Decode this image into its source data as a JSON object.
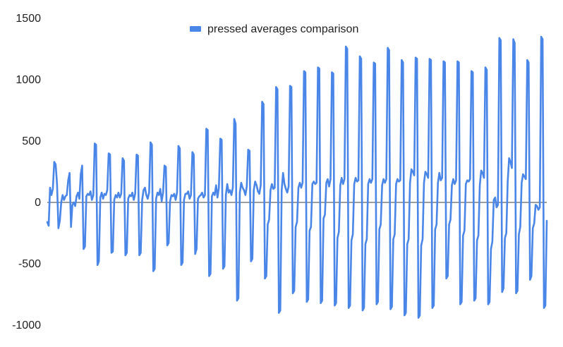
{
  "chart_data": {
    "type": "line",
    "title": "",
    "xlabel": "",
    "ylabel": "",
    "ylim": [
      -1000,
      1500
    ],
    "yticks": [
      -1000,
      -500,
      0,
      500,
      1000,
      1500
    ],
    "grid": false,
    "zero_line": true,
    "legend": {
      "position": "top-center"
    },
    "colors": {
      "series": "#4a86e8",
      "zero_line": "#5f6368",
      "axis_text": "#222222"
    },
    "series": [
      {
        "name": "pressed averages comparison",
        "values": [
          -160,
          -190,
          120,
          60,
          110,
          330,
          310,
          150,
          -210,
          -150,
          0,
          60,
          20,
          50,
          60,
          180,
          240,
          -200,
          -20,
          0,
          -30,
          50,
          80,
          30,
          230,
          300,
          -380,
          -360,
          50,
          70,
          60,
          90,
          20,
          60,
          480,
          470,
          -510,
          -480,
          40,
          80,
          30,
          70,
          60,
          100,
          400,
          390,
          -410,
          -400,
          20,
          60,
          40,
          80,
          40,
          70,
          360,
          340,
          -430,
          -410,
          30,
          60,
          50,
          80,
          20,
          70,
          390,
          380,
          -430,
          -410,
          20,
          100,
          120,
          60,
          30,
          80,
          490,
          470,
          -560,
          -540,
          30,
          80,
          60,
          110,
          10,
          80,
          300,
          290,
          -350,
          -330,
          10,
          60,
          50,
          70,
          20,
          80,
          460,
          440,
          -510,
          -490,
          20,
          70,
          70,
          90,
          30,
          60,
          410,
          390,
          -420,
          -380,
          30,
          50,
          60,
          80,
          40,
          60,
          600,
          590,
          -600,
          -580,
          50,
          80,
          60,
          140,
          40,
          120,
          520,
          510,
          -540,
          -520,
          60,
          150,
          80,
          100,
          60,
          120,
          680,
          640,
          -800,
          -780,
          80,
          160,
          120,
          100,
          60,
          130,
          430,
          420,
          -480,
          -460,
          100,
          170,
          140,
          90,
          70,
          140,
          820,
          800,
          -620,
          -600,
          -180,
          -140,
          100,
          150,
          110,
          120,
          940,
          920,
          -900,
          -880,
          100,
          240,
          150,
          110,
          80,
          130,
          950,
          940,
          -740,
          -720,
          -200,
          -160,
          120,
          160,
          120,
          160,
          1070,
          1060,
          -810,
          -790,
          -230,
          -200,
          150,
          170,
          150,
          160,
          1100,
          1090,
          -820,
          -800,
          -130,
          -100,
          160,
          190,
          130,
          190,
          1060,
          1050,
          -840,
          -820,
          -290,
          -240,
          140,
          200,
          150,
          190,
          1270,
          1250,
          -860,
          -840,
          -310,
          -260,
          150,
          200,
          170,
          180,
          1190,
          1170,
          -880,
          -860,
          -340,
          -300,
          150,
          190,
          160,
          190,
          1140,
          1130,
          -830,
          -810,
          -220,
          -180,
          140,
          190,
          160,
          190,
          1260,
          1240,
          -870,
          -850,
          -300,
          -260,
          150,
          190,
          170,
          180,
          1160,
          1140,
          -920,
          -900,
          -340,
          -300,
          160,
          270,
          250,
          220,
          1180,
          1170,
          -940,
          -920,
          -350,
          -300,
          160,
          250,
          230,
          200,
          1170,
          1160,
          -860,
          -840,
          -220,
          -180,
          160,
          240,
          180,
          200,
          1150,
          1140,
          -620,
          -600,
          -180,
          -140,
          140,
          190,
          150,
          180,
          1150,
          1140,
          -830,
          -810,
          -270,
          -230,
          150,
          180,
          170,
          190,
          1070,
          1060,
          -800,
          -780,
          -310,
          -270,
          140,
          260,
          240,
          200,
          1100,
          1080,
          -830,
          -810,
          -380,
          -320,
          20,
          40,
          -40,
          -20,
          1340,
          1320,
          -730,
          -700,
          -290,
          -250,
          170,
          360,
          330,
          280,
          1330,
          1300,
          -740,
          -720,
          -260,
          -200,
          160,
          230,
          210,
          190,
          1160,
          1140,
          -630,
          -600,
          -210,
          -170,
          -20,
          -30,
          -60,
          -40,
          1350,
          1330,
          -860,
          -840,
          -150
        ]
      }
    ]
  }
}
